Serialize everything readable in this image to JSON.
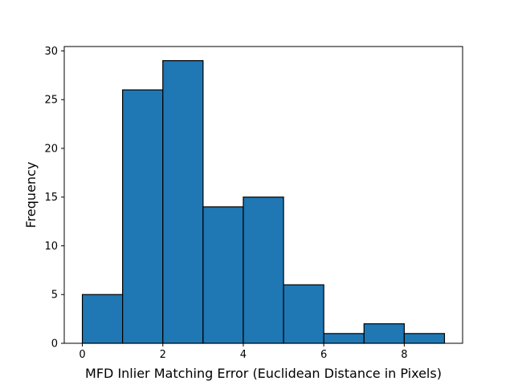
{
  "chart_data": {
    "type": "bar",
    "title": "",
    "xlabel": "MFD Inlier Matching Error (Euclidean Distance in Pixels)",
    "ylabel": "Frequency",
    "bins": [
      [
        0,
        1
      ],
      [
        1,
        2
      ],
      [
        2,
        3
      ],
      [
        3,
        4
      ],
      [
        4,
        5
      ],
      [
        5,
        6
      ],
      [
        6,
        7
      ],
      [
        7,
        8
      ],
      [
        8,
        9
      ]
    ],
    "values": [
      5,
      26,
      29,
      14,
      15,
      6,
      1,
      2,
      1
    ],
    "xlim": [
      -0.45,
      9.45
    ],
    "ylim": [
      0,
      30.45
    ],
    "xticks": [
      0,
      2,
      4,
      6,
      8
    ],
    "yticks": [
      0,
      5,
      10,
      15,
      20,
      25,
      30
    ],
    "bar_color": "#1f77b4",
    "edge_color": "#000000",
    "grid": false,
    "legend": "none"
  }
}
